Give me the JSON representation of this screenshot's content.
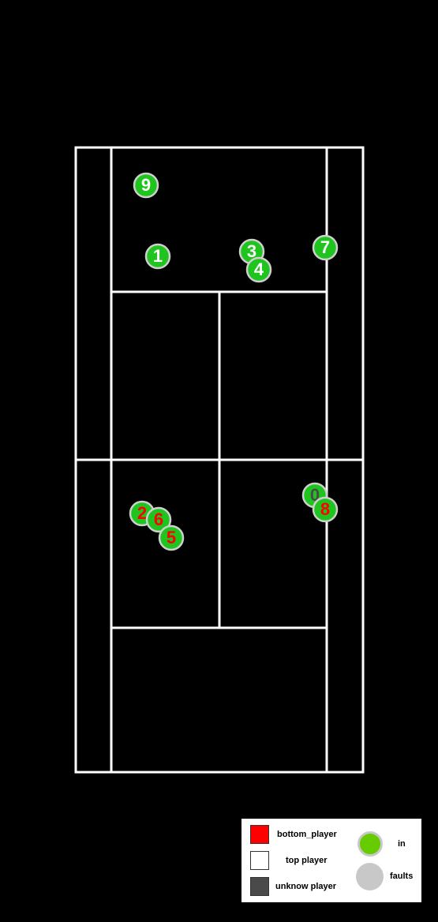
{
  "colors": {
    "background": "#000000",
    "court_lines": "#ffffff",
    "ball_in": "#1fc41f",
    "ball_in_outline": "#cfcfcf",
    "bottom_player": "#ff0000",
    "top_player": "#ffffff",
    "unknown_player": "#4a4a4a",
    "legend_in": "#66cc00",
    "legend_faults": "#c8c8c8"
  },
  "shots": [
    {
      "label": "9",
      "side": "top_player",
      "result": "in"
    },
    {
      "label": "1",
      "side": "top_player",
      "result": "in"
    },
    {
      "label": "3",
      "side": "top_player",
      "result": "in"
    },
    {
      "label": "4",
      "side": "top_player",
      "result": "in"
    },
    {
      "label": "7",
      "side": "top_player",
      "result": "in"
    },
    {
      "label": "0",
      "side": "unknown_player",
      "result": "in"
    },
    {
      "label": "2",
      "side": "bottom_player",
      "result": "in"
    },
    {
      "label": "6",
      "side": "bottom_player",
      "result": "in"
    },
    {
      "label": "5",
      "side": "bottom_player",
      "result": "in"
    },
    {
      "label": "8",
      "side": "bottom_player",
      "result": "in"
    }
  ],
  "legend": {
    "bottom_player": "bottom_player",
    "top_player": "top  player",
    "unknown_player": "unknow  player",
    "in": "in",
    "faults": "faults"
  }
}
